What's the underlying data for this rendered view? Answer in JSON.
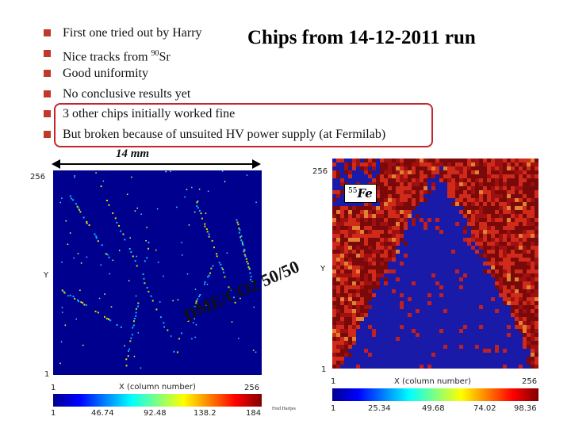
{
  "title": "Chips from 14-12-2011 run",
  "bullets": [
    {
      "text": "First one tried out by Harry",
      "sup": ""
    },
    {
      "text": "Nice tracks from ",
      "sup": "90",
      "suffix": "Sr"
    },
    {
      "text": "Good uniformity",
      "sup": ""
    },
    {
      "text": "No conclusive results yet",
      "sup": ""
    },
    {
      "text": "3 other chips initially worked fine",
      "sup": ""
    },
    {
      "text": "But broken because of unsuited HV power supply (at Fermilab)",
      "sup": ""
    }
  ],
  "colors": {
    "bullet": "#c0392b",
    "highlight_box": "#c1272d",
    "plot_background": "#00008f",
    "hot_pixel": "#b51212"
  },
  "scale": {
    "label": "14 mm"
  },
  "left_plot": {
    "y_top": "256",
    "y_label": "Y",
    "y_bottom": "1",
    "x_left": "1",
    "x_label": "X (column number)",
    "x_right": "256",
    "colorbar_ticks": [
      "1",
      "46.74",
      "92.48",
      "138.2",
      "184"
    ],
    "gas_mixture": "DME/CO2 50/50"
  },
  "right_plot": {
    "y_top": "256",
    "y_label": "Y",
    "y_bottom": "1",
    "x_left": "1",
    "x_label": "X (column number)",
    "x_right": "256",
    "colorbar_ticks": [
      "1",
      "25.34",
      "49.68",
      "74.02",
      "98.36"
    ],
    "source_sup": "55",
    "source_label": "Fe"
  },
  "author": "Fred Hartjes"
}
